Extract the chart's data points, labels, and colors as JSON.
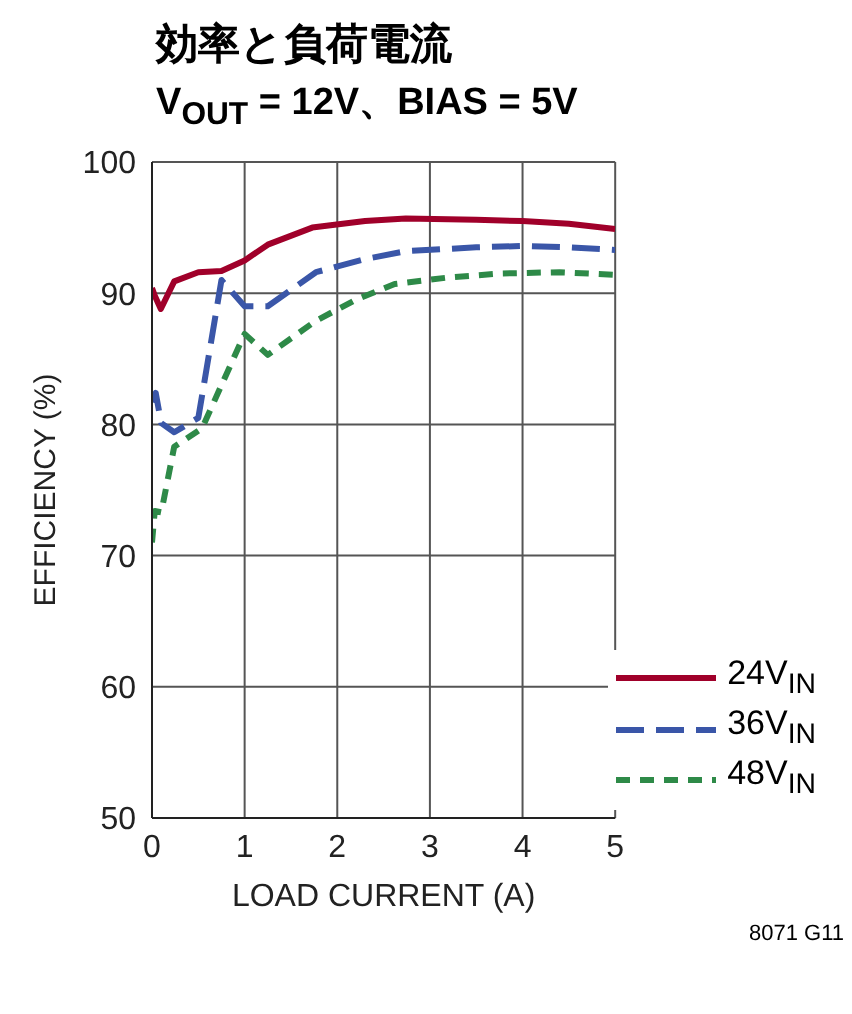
{
  "chart_data": {
    "type": "line",
    "title": "効率と負荷電流",
    "subtitle": "V$_{OUT}$ = 12V、BIAS = 5V",
    "xlabel": "LOAD CURRENT (A)",
    "ylabel": "EFFICIENCY (%)",
    "xlim": [
      0,
      5
    ],
    "xticks": [
      0,
      1,
      2,
      3,
      4,
      5
    ],
    "ylim": [
      50,
      100
    ],
    "yticks": [
      50,
      60,
      70,
      80,
      90,
      100
    ],
    "grid": true,
    "legend": "bottom right",
    "marker": "none",
    "annotations": [
      "8071 G11"
    ],
    "series": [
      {
        "name": "24V$_{IN}$",
        "color": "#a0002a",
        "line_style": "solid",
        "x": [
          0,
          0.03,
          0.095,
          0.24,
          0.5,
          0.75,
          1,
          1.25,
          1.73,
          2.3,
          2.74,
          3.5,
          4,
          4.5,
          5
        ],
        "values": [
          90.4,
          89.8,
          88.8,
          90.9,
          91.6,
          91.7,
          92.5,
          93.7,
          95,
          95.5,
          95.7,
          95.6,
          95.5,
          95.3,
          94.9
        ]
      },
      {
        "name": "36V$_{IN}$",
        "color": "#3a56a8",
        "line_style": "dashed",
        "x": [
          0,
          0.04,
          0.1,
          0.24,
          0.5,
          0.75,
          1,
          1.25,
          1.77,
          2.3,
          2.74,
          3.5,
          4,
          4.5,
          5
        ],
        "values": [
          81.7,
          82.4,
          80.1,
          79.4,
          80.5,
          91,
          89,
          89,
          91.6,
          92.6,
          93.2,
          93.5,
          93.6,
          93.5,
          93.3
        ]
      },
      {
        "name": "48V$_{IN}$",
        "color": "#2e8a48",
        "line_style": "dotted",
        "x": [
          0,
          0.03,
          0.1,
          0.24,
          0.54,
          1,
          1.25,
          1.77,
          2.2,
          2.62,
          3.2,
          3.76,
          4.4,
          5
        ],
        "values": [
          71,
          73.4,
          73.3,
          78.3,
          79.7,
          86.9,
          85.3,
          87.9,
          89.5,
          90.7,
          91.2,
          91.5,
          91.6,
          91.4
        ]
      }
    ]
  }
}
